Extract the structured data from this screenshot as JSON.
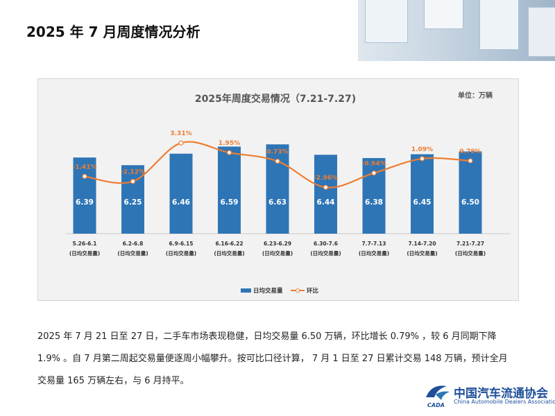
{
  "header": {
    "title": "2025 年 7 月周度情况分析"
  },
  "colors": {
    "bar": "#2e75b6",
    "line": "#ed7d31",
    "line_label": "#ed7d31",
    "bar_label": "#ffffff",
    "panel_bg": "#f2f2f2"
  },
  "chart_data": {
    "type": "bar",
    "title": "2025年周度交易情况（7.21-7.27)",
    "unit_label": "单位：万辆",
    "categories": [
      "5.26-6.1",
      "6.2-6.8",
      "6.9-6.15",
      "6.16-6.22",
      "6.23-6.29",
      "6.30-7.6",
      "7.7-7.13",
      "7.14-7.20",
      "7.21-7.27"
    ],
    "category_sublabel": "(日均交易量)",
    "series": [
      {
        "name": "日均交易量",
        "type": "bar",
        "values": [
          6.39,
          6.25,
          6.46,
          6.59,
          6.63,
          6.44,
          6.38,
          6.45,
          6.5
        ],
        "labels": [
          "6.39",
          "6.25",
          "6.46",
          "6.59",
          "6.63",
          "6.44",
          "6.38",
          "6.45",
          "6.50"
        ]
      },
      {
        "name": "环比",
        "type": "line",
        "values": [
          -1.41,
          -2.12,
          3.31,
          1.95,
          0.73,
          -2.96,
          -0.94,
          1.09,
          0.79
        ],
        "labels": [
          "-1.41%",
          "-2.12%",
          "3.31%",
          "1.95%",
          "0.73%",
          "-2.96%",
          "-0.94%",
          "1.09%",
          "0.79%"
        ]
      }
    ],
    "legend": [
      "日均交易量",
      "环比"
    ],
    "legend_position": "bottom"
  },
  "paragraph": {
    "line1": "2025 年 7 月 21 日至 27 日，二手车市场表现稳健，日均交易量 6.50 万辆，环比增长 0.79% ，较 6 月同期下降",
    "line2": "1.9% 。自 7 月第二周起交易量便逐周小幅攀升。按可比口径计算， 7 月 1 日至 27 日累计交易 148 万辆，预计全月",
    "line3": "交易量 165 万辆左右，与 6 月持平。"
  },
  "logo": {
    "name_cn": "中国汽车流通协会",
    "name_en": "China Automobile Dealers Association",
    "mark_text": "CADA"
  }
}
